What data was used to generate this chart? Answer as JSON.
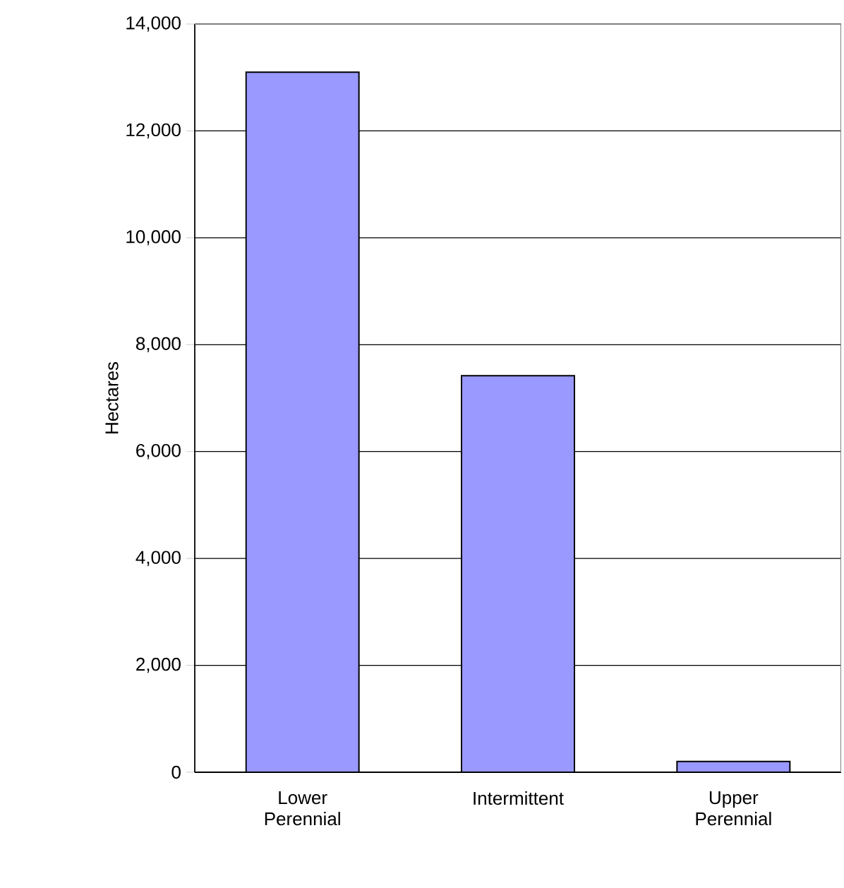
{
  "chart_data": {
    "type": "bar",
    "ylabel": "Hectares",
    "categories": [
      "Lower Perennial",
      "Intermittent",
      "Upper Perennial"
    ],
    "values": [
      13100,
      7420,
      200
    ],
    "color": "#9999ff",
    "ylim": [
      0,
      14000
    ],
    "yticks": [
      {
        "value": 0,
        "label": "0"
      },
      {
        "value": 2000,
        "label": "2,000"
      },
      {
        "value": 4000,
        "label": "4,000"
      },
      {
        "value": 6000,
        "label": "6,000"
      },
      {
        "value": 8000,
        "label": "8,000"
      },
      {
        "value": 10000,
        "label": "10,000"
      },
      {
        "value": 12000,
        "label": "12,000"
      },
      {
        "value": 14000,
        "label": "14,000"
      }
    ],
    "grid": "y"
  }
}
